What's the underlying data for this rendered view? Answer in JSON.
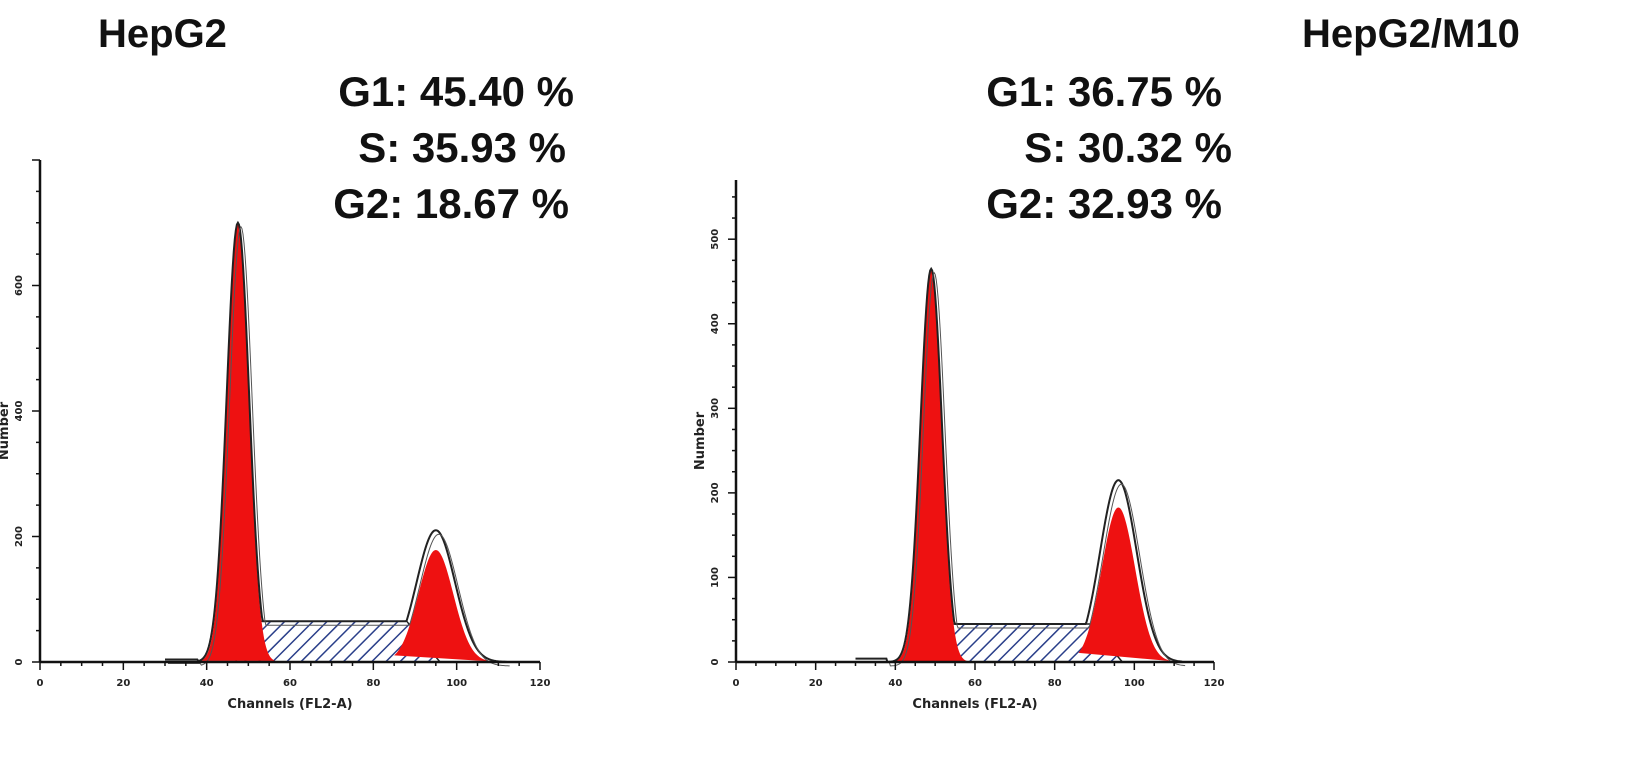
{
  "chart_data": [
    {
      "type": "area",
      "title": "HepG2",
      "xlabel": "Channels (FL2-A)",
      "ylabel": "Number",
      "xlim": [
        0,
        120
      ],
      "ylim": [
        0,
        800
      ],
      "x_ticks": [
        0,
        20,
        40,
        60,
        80,
        100,
        120
      ],
      "y_ticks": [
        0,
        200,
        400,
        600
      ],
      "phases": [
        {
          "label": "G1: 45.40 %",
          "phase": "G1",
          "percent": 45.4
        },
        {
          "label": "S: 35.93 %",
          "phase": "S",
          "percent": 35.93
        },
        {
          "label": "G2: 18.67 %",
          "phase": "G2",
          "percent": 18.67
        }
      ],
      "g1_peak": {
        "center": 47.5,
        "height": 700
      },
      "g2_peak": {
        "center": 95,
        "height": 210
      },
      "s_band": {
        "from": 50,
        "to": 88,
        "level": 65
      },
      "colors": {
        "g1": "#ee1111",
        "g2": "#ee1111",
        "s_hatch": "#2a3f8a",
        "outline": "#222222"
      }
    },
    {
      "type": "area",
      "title": "HepG2/M10",
      "xlabel": "Channels (FL2-A)",
      "ylabel": "Number",
      "xlim": [
        0,
        120
      ],
      "ylim": [
        0,
        570
      ],
      "x_ticks": [
        0,
        20,
        40,
        60,
        80,
        100,
        120
      ],
      "y_ticks": [
        0,
        100,
        200,
        300,
        400,
        500
      ],
      "phases": [
        {
          "label": "G1: 36.75 %",
          "phase": "G1",
          "percent": 36.75
        },
        {
          "label": "S: 30.32 %",
          "phase": "S",
          "percent": 30.32
        },
        {
          "label": "G2: 32.93 %",
          "phase": "G2",
          "percent": 32.93
        }
      ],
      "g1_peak": {
        "center": 49,
        "height": 465
      },
      "g2_peak": {
        "center": 96,
        "height": 215
      },
      "s_band": {
        "from": 52,
        "to": 89,
        "level": 45
      },
      "colors": {
        "g1": "#ee1111",
        "g2": "#ee1111",
        "s_hatch": "#2a3f8a",
        "outline": "#222222"
      }
    }
  ]
}
